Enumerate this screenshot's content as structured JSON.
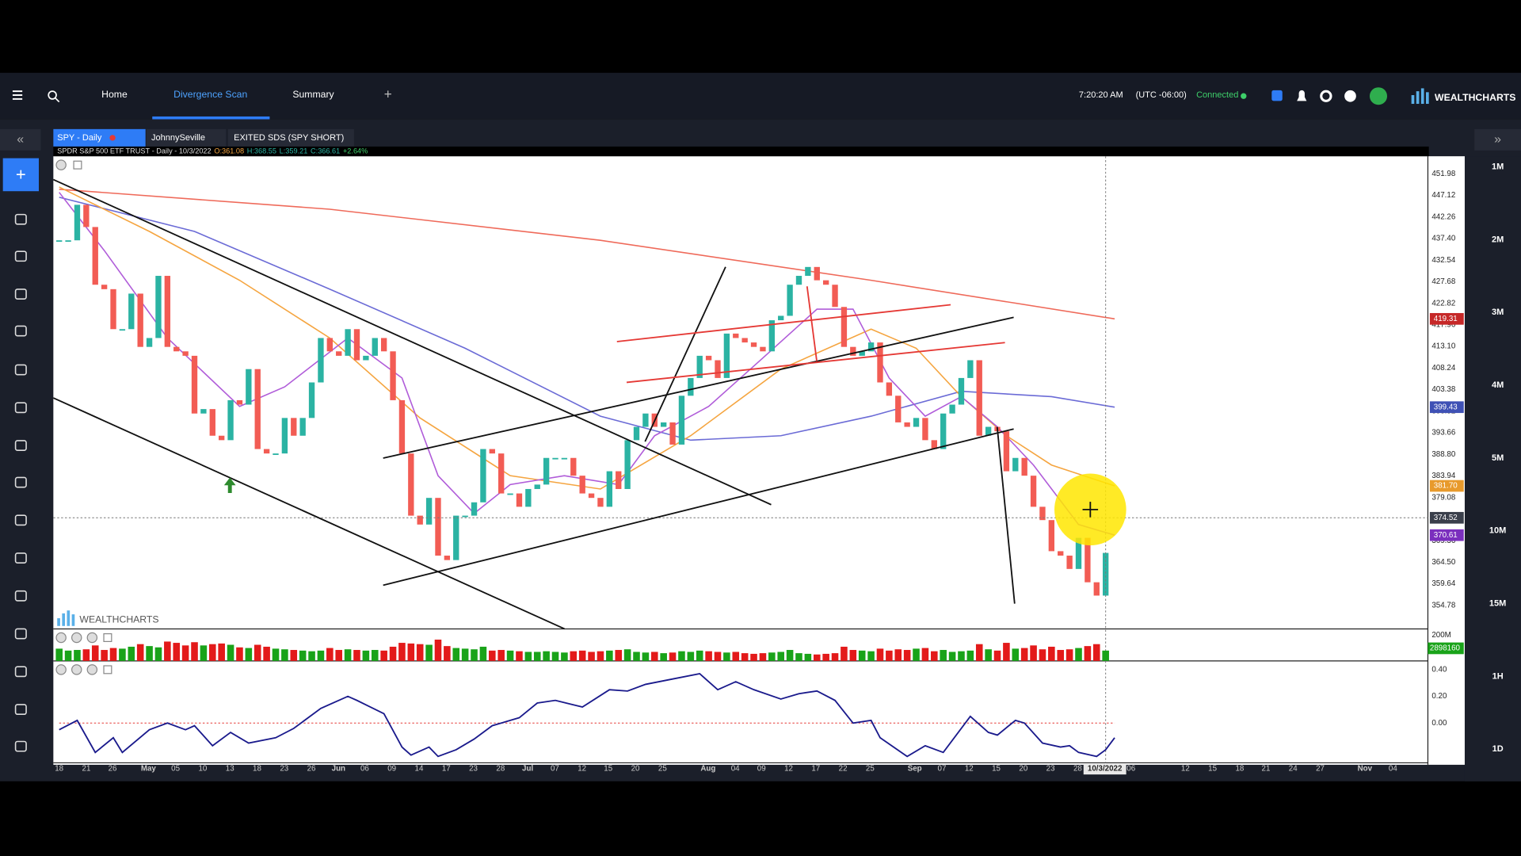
{
  "nav": {
    "items": [
      "Home",
      "Divergence Scan",
      "Summary"
    ],
    "time": "7:20:20 AM",
    "timezone": "(UTC -06:00)",
    "status": "Connected",
    "brand": "WEALTHCHARTS"
  },
  "tabs": [
    "SPY - Daily",
    "JohnnySeville",
    "EXITED SDS (SPY SHORT)"
  ],
  "timeframes": [
    "1M",
    "2M",
    "3M",
    "4M",
    "5M",
    "10M",
    "15M",
    "1H",
    "1D"
  ],
  "chart_data": {
    "type": "candlestick",
    "title": "SPDR S&P 500 ETF TRUST",
    "subtitle": " - Daily - 10/3/2022",
    "quote": [
      "O:361.08",
      "H:368.55",
      "L:359.21",
      "C:366.61",
      "+2.64%"
    ],
    "watermark": "WEALTHCHARTS",
    "x_labels": [
      "18",
      "21",
      "26",
      "May",
      "05",
      "10",
      "13",
      "18",
      "23",
      "26",
      "Jun",
      "06",
      "09",
      "14",
      "17",
      "23",
      "28",
      "Jul",
      "07",
      "12",
      "15",
      "20",
      "25",
      "Aug",
      "04",
      "09",
      "12",
      "17",
      "22",
      "25",
      "Sep",
      "07",
      "12",
      "15",
      "20",
      "23",
      "28",
      "10/3/2022",
      "06",
      "12",
      "15",
      "18",
      "21",
      "24",
      "27",
      "Nov",
      "04"
    ],
    "closes": [
      437,
      437,
      445,
      440,
      427,
      426,
      417,
      417,
      425,
      413,
      415,
      429,
      413,
      412,
      411,
      398,
      399,
      393,
      392,
      401,
      400,
      408,
      390,
      389,
      389,
      397,
      393,
      397,
      405,
      415,
      412,
      411,
      417,
      410,
      411,
      415,
      412,
      401,
      389,
      375,
      373,
      379,
      366,
      365,
      375,
      375,
      378,
      390,
      389,
      380,
      380,
      377,
      381,
      382,
      388,
      388,
      388,
      384,
      380,
      379,
      377,
      385,
      381,
      392,
      395,
      398,
      395,
      396,
      391,
      402,
      406,
      411,
      410,
      406,
      416,
      415,
      414,
      413,
      412,
      419,
      420,
      427,
      429,
      431,
      428,
      427,
      422,
      413,
      411,
      412,
      414,
      405,
      402,
      396,
      395,
      397,
      392,
      390,
      398,
      400,
      406,
      410,
      393,
      395,
      394,
      385,
      388,
      384,
      377,
      374,
      367,
      366,
      363,
      370,
      360,
      357,
      366.61
    ],
    "up_color": "#2bb3a3",
    "down_color": "#f25c54",
    "ylim": [
      349.5,
      455.93
    ],
    "yticks": [
      451.98,
      447.12,
      442.26,
      {
        "value": 437.4,
        "label": "437.40"
      },
      432.54,
      427.68,
      422.82,
      417.96,
      {
        "value": 413.1,
        "label": "413.10"
      },
      408.24,
      403.38,
      398.52,
      393.66,
      {
        "value": 388.8,
        "label": "388.80"
      },
      383.94,
      379.08,
      369.36,
      {
        "value": 364.5,
        "label": "364.50"
      },
      359.64,
      354.78
    ],
    "moving_averages": [
      {
        "color": "#ef6a5a",
        "x": [
          0,
          30,
          60,
          90,
          117
        ],
        "values": [
          448.5,
          444,
          437,
          428,
          419.31
        ]
      },
      {
        "color": "#6b6bd6",
        "x": [
          0,
          15,
          30,
          45,
          60,
          70,
          80,
          90,
          100,
          110,
          117
        ],
        "values": [
          446.7,
          439,
          426,
          412.7,
          397.4,
          392,
          393,
          397.4,
          403,
          401.8,
          399.43
        ]
      },
      {
        "color": "#f5a540",
        "x": [
          0,
          10,
          20,
          30,
          40,
          50,
          60,
          70,
          80,
          90,
          95,
          100,
          105,
          110,
          117
        ],
        "values": [
          449,
          439,
          428,
          415,
          397,
          384,
          381,
          393,
          408,
          417,
          412.7,
          401.8,
          393,
          386.4,
          381.7
        ]
      },
      {
        "color": "#b05cd9",
        "x": [
          0,
          5,
          12,
          20,
          25,
          32,
          38,
          42,
          46,
          50,
          56,
          62,
          66,
          72,
          78,
          84,
          88,
          92,
          96,
          100,
          104,
          108,
          113,
          117
        ],
        "values": [
          447.8,
          434.7,
          415,
          399.6,
          404,
          415,
          406,
          384,
          375.5,
          382,
          384,
          382,
          393,
          399.6,
          410.5,
          421.5,
          421.5,
          406,
          397.4,
          401.8,
          395,
          386.4,
          373,
          370.61
        ]
      }
    ],
    "price_markers": [
      {
        "value": 419.31,
        "label": "419.31",
        "color": "#c62828"
      },
      {
        "value": 399.43,
        "label": "399.43",
        "color": "#3f51b5"
      },
      {
        "value": 381.7,
        "label": "381.70",
        "color": "#e89a2c"
      },
      {
        "value": 374.52,
        "label": "374.52",
        "color": "#3a3f4b"
      },
      {
        "value": 370.61,
        "label": "370.61",
        "color": "#7b2fbe"
      }
    ],
    "volume": {
      "values": [
        95,
        80,
        85,
        90,
        120,
        85,
        100,
        95,
        110,
        130,
        115,
        105,
        150,
        140,
        120,
        145,
        120,
        130,
        135,
        125,
        105,
        100,
        125,
        110,
        95,
        90,
        85,
        80,
        75,
        80,
        100,
        85,
        90,
        85,
        80,
        85,
        80,
        110,
        140,
        135,
        130,
        125,
        165,
        115,
        100,
        95,
        90,
        110,
        80,
        85,
        80,
        75,
        70,
        70,
        75,
        70,
        65,
        75,
        80,
        70,
        75,
        80,
        85,
        90,
        70,
        65,
        70,
        60,
        65,
        75,
        70,
        80,
        75,
        70,
        65,
        70,
        60,
        55,
        60,
        65,
        70,
        85,
        60,
        55,
        50,
        55,
        60,
        110,
        85,
        80,
        75,
        95,
        80,
        90,
        85,
        95,
        100,
        75,
        85,
        70,
        75,
        80,
        130,
        90,
        80,
        140,
        95,
        100,
        120,
        90,
        110,
        85,
        90,
        100,
        115,
        130,
        80
      ],
      "ylim": [
        0,
        248
      ],
      "yticks": [
        {
          "value": 200,
          "label": "200M"
        }
      ],
      "last_label": "2898160"
    },
    "oscillator": {
      "color": "#1a1a8c",
      "x": [
        0,
        2,
        4,
        6,
        7,
        10,
        12,
        14,
        15,
        17,
        19,
        21,
        24,
        26,
        29,
        32,
        33,
        36,
        38,
        39,
        41,
        42,
        44,
        46,
        48,
        51,
        53,
        55,
        58,
        61,
        63,
        65,
        68,
        71,
        73,
        75,
        77,
        80,
        82,
        84,
        86,
        88,
        90,
        91,
        94,
        96,
        98,
        101,
        103,
        104,
        106,
        107,
        109,
        111,
        112,
        113,
        115,
        116,
        117
      ],
      "values": [
        -0.05,
        0.02,
        -0.22,
        -0.11,
        -0.22,
        -0.05,
        0,
        -0.05,
        -0.02,
        -0.17,
        -0.07,
        -0.15,
        -0.11,
        -0.04,
        0.11,
        0.2,
        0.17,
        0.07,
        -0.18,
        -0.24,
        -0.18,
        -0.25,
        -0.2,
        -0.12,
        -0.02,
        0.04,
        0.15,
        0.17,
        0.12,
        0.25,
        0.24,
        0.29,
        0.33,
        0.37,
        0.25,
        0.31,
        0.25,
        0.18,
        0.22,
        0.24,
        0.17,
        0,
        0.02,
        -0.11,
        -0.25,
        -0.17,
        -0.22,
        0.05,
        -0.07,
        -0.09,
        0.02,
        0,
        -0.15,
        -0.18,
        -0.17,
        -0.22,
        -0.25,
        -0.2,
        -0.11
      ],
      "ylim": [
        -0.298,
        0.451
      ],
      "yticks": [
        {
          "value": 0.4,
          "label": "0.40"
        },
        {
          "value": 0.2,
          "label": "0.20"
        },
        {
          "value": 0,
          "label": "0.00"
        }
      ]
    }
  }
}
